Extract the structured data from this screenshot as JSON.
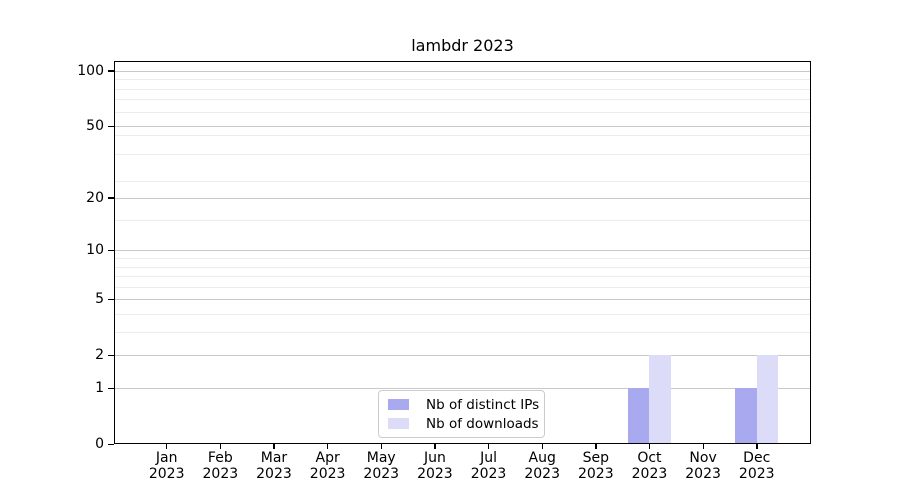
{
  "title": "lambdr 2023",
  "chart_data": {
    "type": "bar",
    "title": "lambdr 2023",
    "categories": [
      "Jan 2023",
      "Feb 2023",
      "Mar 2023",
      "Apr 2023",
      "May 2023",
      "Jun 2023",
      "Jul 2023",
      "Aug 2023",
      "Sep 2023",
      "Oct 2023",
      "Nov 2023",
      "Dec 2023"
    ],
    "x_tick_months": [
      "Jan",
      "Feb",
      "Mar",
      "Apr",
      "May",
      "Jun",
      "Jul",
      "Aug",
      "Sep",
      "Oct",
      "Nov",
      "Dec"
    ],
    "x_tick_year": "2023",
    "series": [
      {
        "name": "Nb of distinct IPs",
        "color": "#a9a9f0",
        "values": [
          0,
          0,
          0,
          0,
          0,
          0,
          0,
          0,
          0,
          1,
          0,
          1
        ]
      },
      {
        "name": "Nb of downloads",
        "color": "#dcdcf8",
        "values": [
          0,
          0,
          0,
          0,
          0,
          0,
          0,
          0,
          0,
          2,
          0,
          2
        ]
      }
    ],
    "y_axis": {
      "scale": "log1p",
      "major_ticks": [
        0,
        1,
        2,
        5,
        10,
        20,
        50,
        100
      ],
      "minor_ticks": [
        3,
        4,
        6,
        7,
        8,
        9,
        15,
        25,
        35,
        45,
        60,
        70,
        80,
        90
      ],
      "ylim": [
        0,
        113
      ]
    },
    "grid": "both",
    "legend_position": "lower center",
    "colors": {
      "major_grid": "#c8c8c8",
      "minor_grid": "#ededed",
      "spine": "#000000",
      "legend_border": "#cccccc"
    }
  }
}
